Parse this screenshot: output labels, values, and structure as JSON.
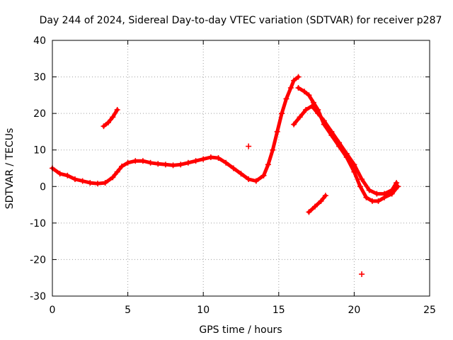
{
  "chart_data": {
    "type": "scatter",
    "title": "Day 244 of 2024, Sidereal Day-to-day VTEC variation (SDTVAR) for receiver p287",
    "xlabel": "GPS time / hours",
    "ylabel": "SDTVAR / TECUs",
    "xlim": [
      0,
      25
    ],
    "ylim": [
      -30,
      40
    ],
    "xticks": [
      0,
      5,
      10,
      15,
      20,
      25
    ],
    "yticks": [
      -30,
      -20,
      -10,
      0,
      10,
      20,
      30,
      40
    ],
    "grid": true,
    "marker": "plus",
    "color": "#ff0000",
    "series": [
      {
        "name": "main-track",
        "x": [
          0.0,
          0.5,
          1.0,
          1.5,
          2.0,
          2.5,
          3.0,
          3.5,
          4.0,
          4.3,
          4.6,
          5.0,
          5.5,
          6.0,
          6.5,
          7.0,
          7.5,
          8.0,
          8.5,
          9.0,
          9.5,
          10.0,
          10.5,
          11.0,
          11.5,
          12.0,
          12.5,
          13.0,
          13.5,
          14.0,
          14.3,
          14.6,
          14.9,
          15.2,
          15.5,
          15.8,
          16.0,
          16.3
        ],
        "y": [
          5,
          3.5,
          3,
          2,
          1.5,
          1,
          0.8,
          1,
          2.5,
          4,
          5.5,
          6.5,
          7,
          7,
          6.5,
          6.2,
          6,
          5.8,
          6,
          6.5,
          7,
          7.5,
          8,
          7.8,
          6.5,
          5,
          3.5,
          2,
          1.5,
          3,
          6,
          10,
          15,
          20,
          24,
          27,
          29,
          30
        ]
      },
      {
        "name": "upper-branch",
        "x": [
          16.3,
          16.7,
          17.0,
          17.3,
          17.6,
          18.0,
          18.5,
          19.0,
          19.5,
          20.0,
          20.4,
          20.8,
          21.2,
          21.6,
          22.0,
          22.5,
          22.9
        ],
        "y": [
          27,
          26,
          25,
          23,
          21,
          17,
          14,
          11,
          8,
          4,
          0,
          -3,
          -4,
          -4,
          -3,
          -2,
          0
        ]
      },
      {
        "name": "lower-branch",
        "x": [
          16.0,
          16.4,
          16.8,
          17.2,
          17.6,
          18.0,
          18.5,
          19.0,
          19.5,
          20.0,
          20.5,
          21.0,
          21.5,
          22.0,
          22.5,
          22.8
        ],
        "y": [
          17,
          19,
          21,
          22,
          20,
          18,
          15,
          12,
          9,
          6,
          2,
          -1,
          -2,
          -2,
          -1,
          1
        ]
      },
      {
        "name": "early-arc",
        "x": [
          3.4,
          3.7,
          4.0,
          4.3
        ],
        "y": [
          16.5,
          17.5,
          19,
          21
        ]
      },
      {
        "name": "late-dip",
        "x": [
          17.0,
          17.4,
          17.8,
          18.1
        ],
        "y": [
          -7,
          -5.5,
          -4,
          -2.5
        ]
      }
    ],
    "isolated_points": [
      {
        "x": 13.0,
        "y": 11
      },
      {
        "x": 20.5,
        "y": -24
      }
    ]
  }
}
